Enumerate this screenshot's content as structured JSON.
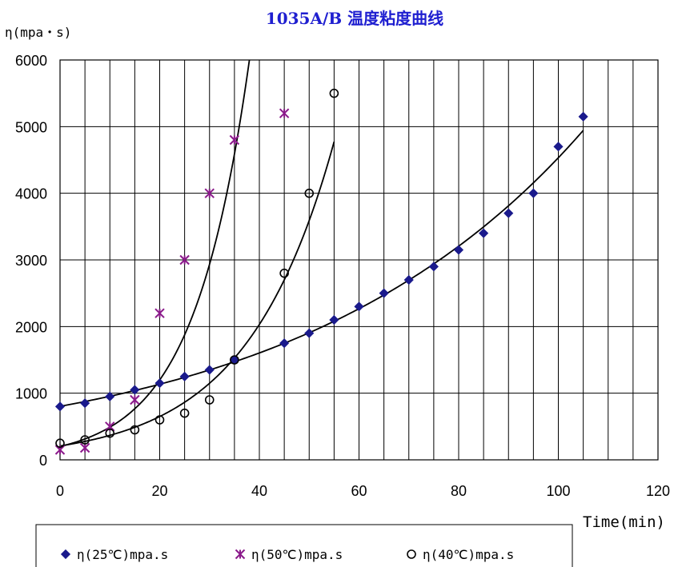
{
  "chart_data": {
    "type": "scatter",
    "title": "1035A/B 温度粘度曲线",
    "ylabel": "η(mpa・s)",
    "xlabel": "Time(min)",
    "xlim": [
      0,
      120
    ],
    "ylim": [
      0,
      6000
    ],
    "xticks": [
      0,
      20,
      40,
      60,
      80,
      100,
      120
    ],
    "yticks": [
      0,
      1000,
      2000,
      3000,
      4000,
      5000,
      6000
    ],
    "minor_x_grid_step": 5,
    "grid": true,
    "legend_position": "bottom",
    "series": [
      {
        "name": "η(25℃)mpa.s",
        "marker": "diamond",
        "color": "#1a1a8c",
        "x": [
          0,
          5,
          10,
          15,
          20,
          25,
          30,
          35,
          45,
          50,
          55,
          60,
          65,
          70,
          75,
          80,
          85,
          90,
          95,
          100,
          105
        ],
        "y": [
          800,
          850,
          950,
          1050,
          1150,
          1250,
          1350,
          1500,
          1750,
          1900,
          2100,
          2300,
          2500,
          2700,
          2900,
          3150,
          3400,
          3700,
          4000,
          4700,
          5150
        ],
        "trendline": "exponential"
      },
      {
        "name": "η(50℃)mpa.s",
        "marker": "asterisk",
        "color": "#8b1a8b",
        "x": [
          0,
          5,
          10,
          15,
          20,
          25,
          30,
          35,
          45
        ],
        "y": [
          150,
          180,
          500,
          900,
          2200,
          3000,
          4000,
          4800,
          5200
        ],
        "trendline": "exponential"
      },
      {
        "name": "η(40℃)mpa.s",
        "marker": "circle",
        "color": "#000000",
        "x": [
          0,
          5,
          10,
          15,
          20,
          25,
          30,
          35,
          45,
          50,
          55
        ],
        "y": [
          250,
          300,
          400,
          450,
          600,
          700,
          900,
          1500,
          2800,
          4000,
          5500
        ],
        "trendline": "exponential"
      }
    ]
  }
}
